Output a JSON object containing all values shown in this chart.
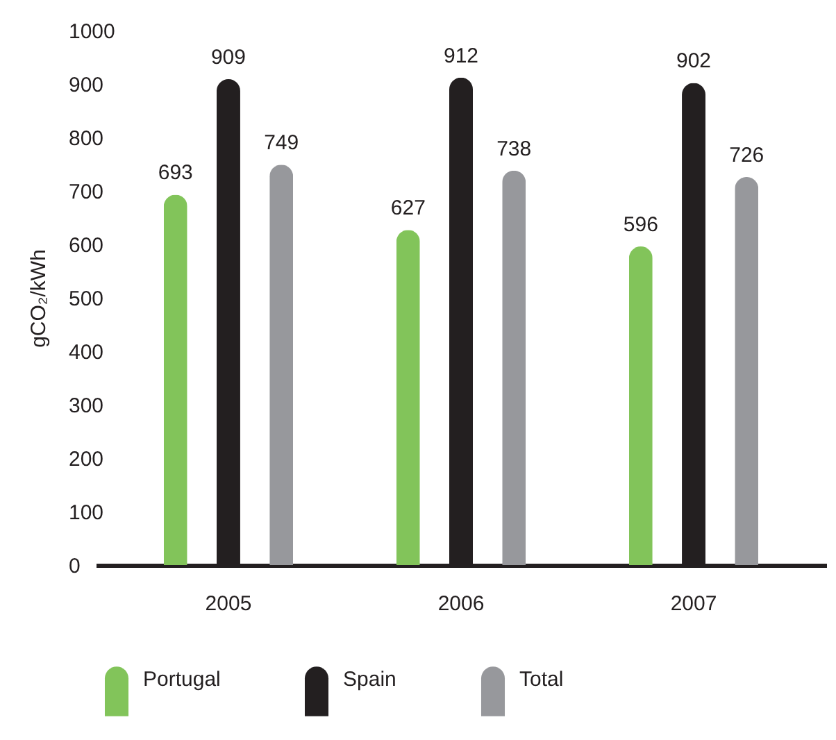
{
  "chart_data": {
    "type": "bar",
    "ylabel": "gCO₂/kWh",
    "categories": [
      "2005",
      "2006",
      "2007"
    ],
    "series": [
      {
        "name": "Portugal",
        "color": "#82c45a",
        "values": [
          693,
          627,
          596
        ]
      },
      {
        "name": "Spain",
        "color": "#231f20",
        "values": [
          909,
          912,
          902
        ]
      },
      {
        "name": "Total",
        "color": "#97989c",
        "values": [
          749,
          738,
          726
        ]
      }
    ],
    "ylim": [
      0,
      1000
    ],
    "yticks": [
      0,
      100,
      200,
      300,
      400,
      500,
      600,
      700,
      800,
      900,
      1000
    ],
    "data_labels": true,
    "legend": "bottom"
  }
}
